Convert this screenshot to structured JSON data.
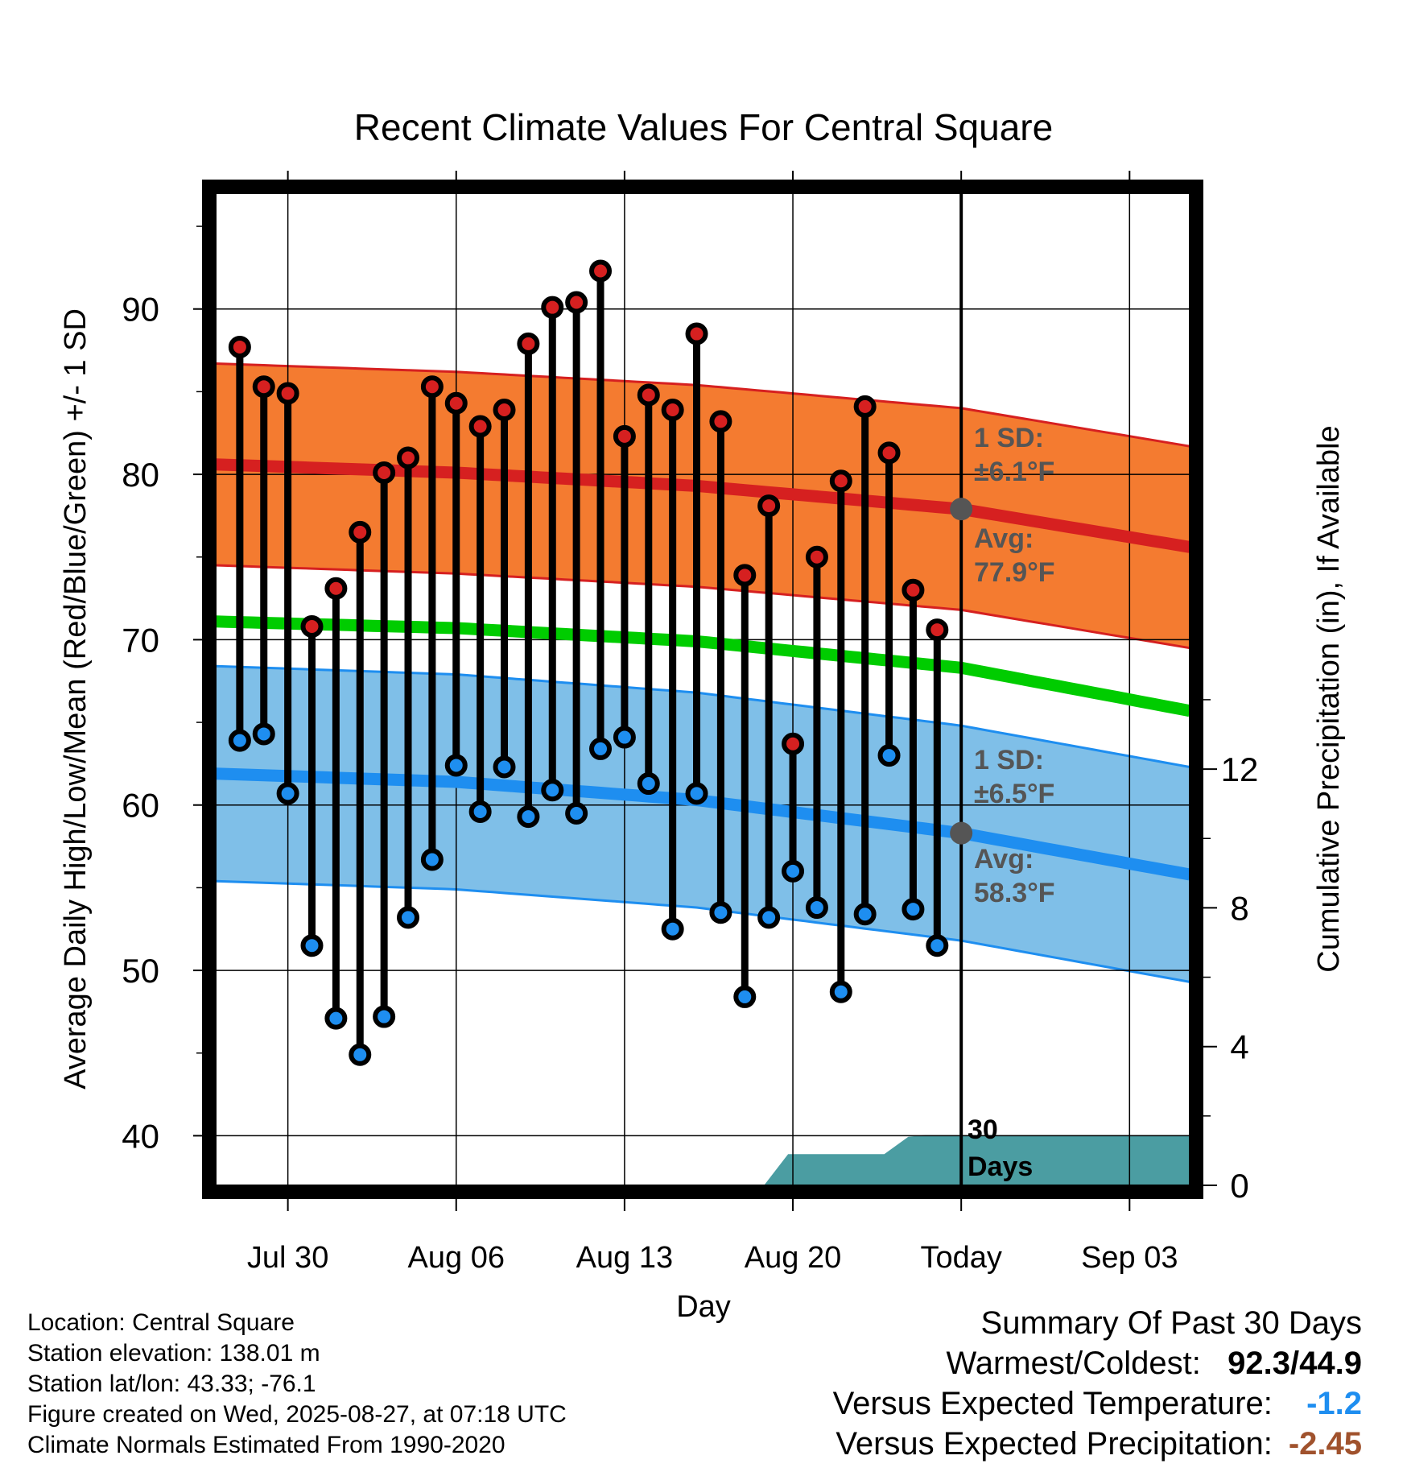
{
  "title": "Recent Climate Values For Central Square",
  "xlabel": "Day",
  "ylabel_left": "Average Daily High/Low/Mean (Red/Blue/Green) +/- 1 SD",
  "ylabel_right": "Cumulative Precipitation (in), If Available",
  "high_annot": {
    "sd_label": "1 SD:",
    "sd_value": "±6.1",
    "avg_label": "Avg:",
    "avg_value": "77.9",
    "unit": "°F"
  },
  "low_annot": {
    "sd_label": "1 SD:",
    "sd_value": "±6.5",
    "avg_label": "Avg:",
    "avg_value": "58.3",
    "unit": "°F"
  },
  "days_label_1": "30",
  "days_label_2": "Days",
  "info": {
    "location": "Location: Central Square",
    "elevation": "Station elevation: 138.01 m",
    "latlon": "Station lat/lon: 43.33; -76.1",
    "created": "Figure created on Wed, 2025-08-27, at 07:18 UTC",
    "normals": "Climate Normals Estimated From 1990-2020"
  },
  "summary": {
    "title": "Summary Of Past 30 Days",
    "warm_cold_label": "Warmest/Coldest:",
    "warm_cold_value": "92.3/44.9",
    "temp_label": "Versus Expected Temperature:",
    "temp_value": "-1.2",
    "precip_label": "Versus Expected Precipitation:",
    "precip_value": "-2.45"
  },
  "colors": {
    "high_band": "#f47b30",
    "high_line": "#d62020",
    "low_band": "#7fbfe8",
    "low_line": "#1e8ef0",
    "mean_line": "#00cc00",
    "precip": "#4b9da2",
    "annot_text": "#555555",
    "temp_value": "#1e8ef0",
    "precip_value": "#a0522d"
  },
  "chart_data": {
    "type": "line",
    "x_ticks": [
      {
        "label": "Jul 30",
        "day": 3
      },
      {
        "label": "Aug 06",
        "day": 10
      },
      {
        "label": "Aug 13",
        "day": 17
      },
      {
        "label": "Aug 20",
        "day": 24
      },
      {
        "label": "Today",
        "day": 31
      },
      {
        "label": "Sep 03",
        "day": 38
      }
    ],
    "today_day": 31,
    "xlim_days": [
      0,
      40.5
    ],
    "ylim_left": [
      37,
      97
    ],
    "yticks_left": [
      40,
      50,
      60,
      70,
      80,
      90
    ],
    "ylim_right": [
      0,
      28.6
    ],
    "yticks_right": [
      0,
      4,
      8,
      12
    ],
    "observed": {
      "days": [
        1,
        2,
        3,
        4,
        5,
        6,
        7,
        8,
        9,
        10,
        11,
        12,
        13,
        14,
        15,
        16,
        17,
        18,
        19,
        20,
        21,
        22,
        23,
        24,
        25,
        26,
        27,
        28,
        29,
        30
      ],
      "highs": [
        87.7,
        85.3,
        84.9,
        70.8,
        73.1,
        76.5,
        80.1,
        81.0,
        85.3,
        84.3,
        82.9,
        83.9,
        87.9,
        90.1,
        90.4,
        92.3,
        82.3,
        84.8,
        83.9,
        88.5,
        83.2,
        73.9,
        78.1,
        63.7,
        75.0,
        79.6,
        84.1,
        81.3,
        73.0,
        70.6
      ],
      "lows": [
        63.9,
        64.3,
        60.7,
        51.5,
        47.1,
        44.9,
        47.2,
        53.2,
        56.7,
        62.4,
        59.6,
        62.3,
        59.3,
        60.9,
        59.5,
        63.4,
        64.1,
        61.3,
        52.5,
        60.7,
        53.5,
        48.4,
        53.2,
        56.0,
        53.8,
        48.7,
        53.4,
        63.0,
        53.7,
        51.5
      ]
    },
    "normals": {
      "days": [
        0,
        10,
        20,
        31,
        40.5
      ],
      "high_mean": [
        80.6,
        80.1,
        79.3,
        77.9,
        75.6
      ],
      "high_sd": 6.1,
      "low_mean": [
        61.9,
        61.4,
        60.3,
        58.3,
        55.8
      ],
      "low_sd": 6.5,
      "mean": [
        71.1,
        70.7,
        69.9,
        68.3,
        65.7
      ]
    },
    "precip_cumulative": {
      "days": [
        0,
        22.8,
        23.8,
        27.8,
        28.8,
        29.5,
        30.8,
        31,
        40.5
      ],
      "values": [
        0,
        0,
        0.9,
        0.9,
        1.4,
        1.45,
        1.45,
        1.45,
        1.45
      ]
    },
    "annotated_today": {
      "high_avg": 77.9,
      "low_avg": 58.3
    }
  }
}
